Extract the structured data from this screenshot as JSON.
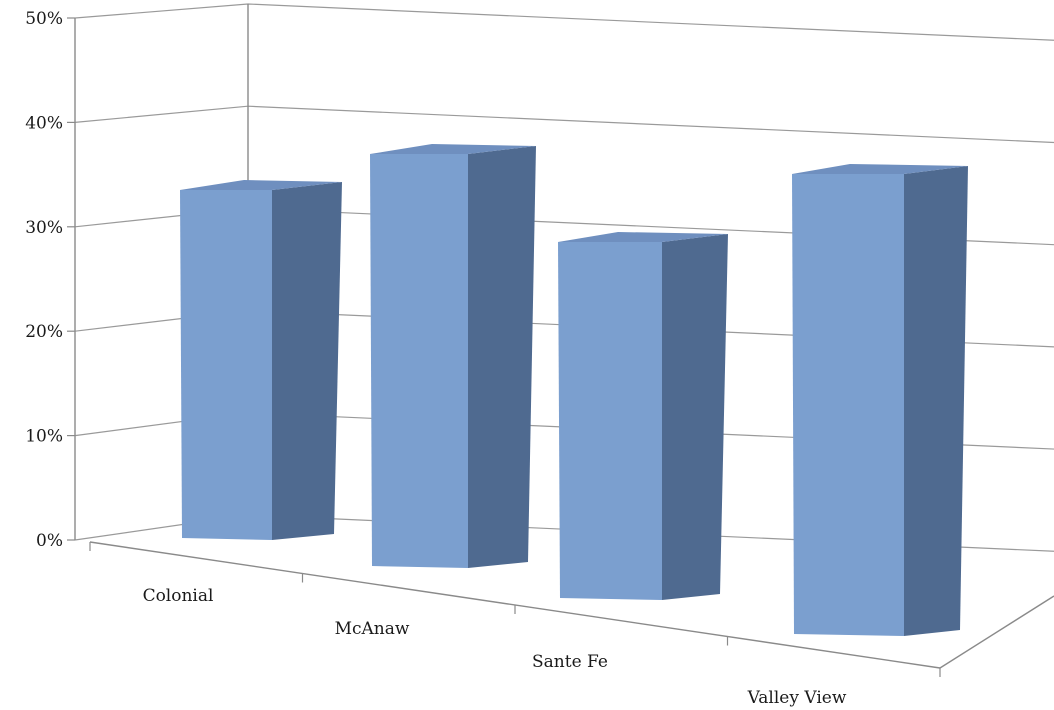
{
  "chart_data": {
    "type": "bar",
    "style": "3d-column",
    "categories": [
      "Colonial",
      "McAnaw",
      "Sante Fe",
      "Valley View"
    ],
    "values": [
      35,
      41,
      35,
      45
    ],
    "y_unit": "%",
    "ylim": [
      0,
      50
    ],
    "y_ticks": [
      "0%",
      "10%",
      "20%",
      "30%",
      "40%",
      "50%"
    ],
    "grid": true,
    "legend": "none",
    "title": "",
    "xlabel": "",
    "ylabel": "",
    "colors": {
      "bar_front": "#7b9fcf",
      "bar_side": "#4f6a90",
      "bar_top": "#6f8fbf",
      "grid": "#9a9a9a"
    }
  }
}
